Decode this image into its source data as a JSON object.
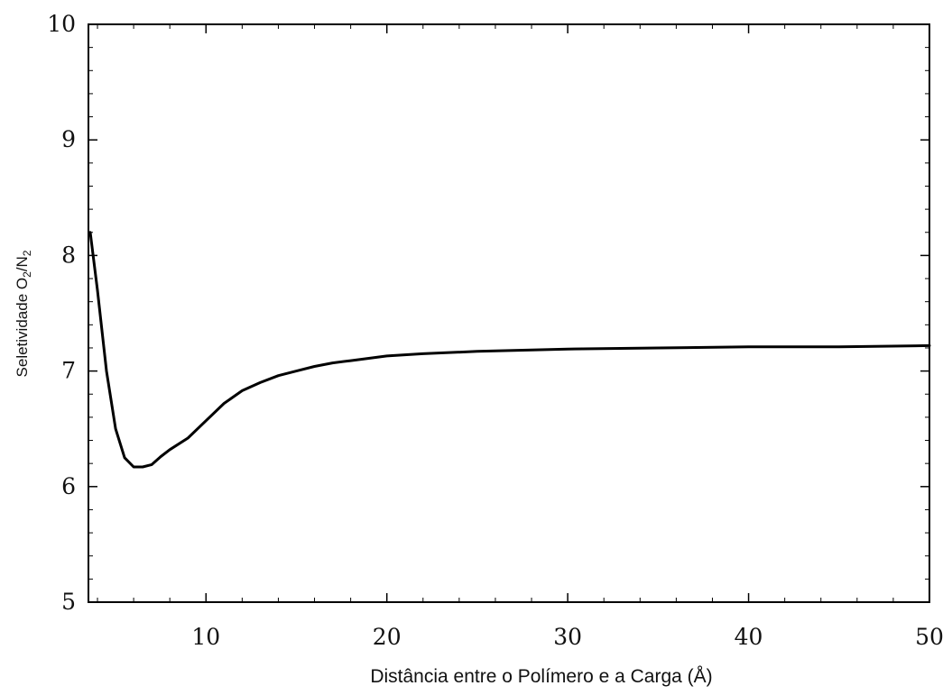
{
  "chart_data": {
    "type": "line",
    "title": "",
    "xlabel": "Distância entre o Polímero e a Carga (Å)",
    "ylabel": {
      "prefix": "Seletividade O",
      "sub1": "2",
      "mid": "/N",
      "sub2": "2"
    },
    "xlim": [
      3.5,
      50
    ],
    "ylim": [
      5,
      10
    ],
    "x_ticks": [
      10,
      20,
      30,
      40,
      50
    ],
    "y_ticks": [
      5,
      6,
      7,
      8,
      9,
      10
    ],
    "grid": false,
    "legend": "none",
    "series": [
      {
        "color": "#000000",
        "x": [
          3.6,
          4,
          4.5,
          5,
          5.5,
          6,
          6.5,
          7,
          7.5,
          8,
          9,
          10,
          11,
          12,
          13,
          14,
          15,
          16,
          17,
          18,
          19,
          20,
          22,
          25,
          30,
          35,
          40,
          45,
          50
        ],
        "y": [
          8.2,
          7.7,
          7.0,
          6.5,
          6.25,
          6.17,
          6.17,
          6.19,
          6.26,
          6.32,
          6.42,
          6.57,
          6.72,
          6.83,
          6.9,
          6.96,
          7.0,
          7.04,
          7.07,
          7.09,
          7.11,
          7.13,
          7.15,
          7.17,
          7.19,
          7.2,
          7.21,
          7.21,
          7.22
        ]
      }
    ]
  }
}
